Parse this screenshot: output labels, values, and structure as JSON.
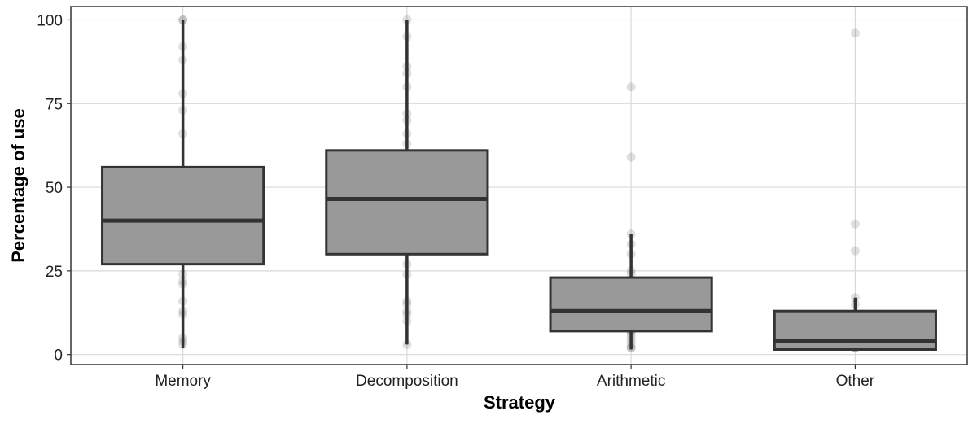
{
  "chart_data": {
    "type": "box",
    "title": "",
    "xlabel": "Strategy",
    "ylabel": "Percentage of use",
    "ylim": [
      -3,
      104
    ],
    "yticks": [
      0,
      25,
      50,
      75,
      100
    ],
    "ytick_labels": [
      "0",
      "25",
      "50",
      "75",
      "100"
    ],
    "grid": true,
    "legend": "none",
    "colors": {
      "box_fill": "#999999",
      "box_stroke": "#333333",
      "points": "#555555",
      "grid": "#d9d9d9",
      "panel_border": "#333333"
    },
    "categories": [
      "Memory",
      "Decomposition",
      "Arithmetic",
      "Other"
    ],
    "boxes": [
      {
        "category": "Memory",
        "whisker_low": 2,
        "q1": 27,
        "median": 40,
        "q3": 56,
        "whisker_high": 100
      },
      {
        "category": "Decomposition",
        "whisker_low": 3,
        "q1": 30,
        "median": 46.5,
        "q3": 61,
        "whisker_high": 100
      },
      {
        "category": "Arithmetic",
        "whisker_low": 1.5,
        "q1": 7,
        "median": 13,
        "q3": 23,
        "whisker_high": 36
      },
      {
        "category": "Other",
        "whisker_low": 1.5,
        "q1": 1.5,
        "median": 4,
        "q3": 13,
        "whisker_high": 17
      }
    ],
    "points": [
      {
        "category": "Memory",
        "values": [
          100,
          100,
          92,
          88,
          78,
          73,
          66,
          54,
          53,
          51,
          50,
          49,
          48,
          46,
          44,
          43,
          42,
          40,
          39,
          38,
          36,
          35,
          34,
          32,
          30,
          29,
          28,
          24,
          22,
          21,
          16,
          13,
          12,
          5,
          4,
          3
        ]
      },
      {
        "category": "Decomposition",
        "values": [
          100,
          95,
          86,
          84,
          80,
          72,
          70,
          66,
          63,
          60,
          57,
          56,
          53,
          53,
          52,
          50,
          48,
          47,
          46,
          45,
          44,
          43,
          42,
          41,
          40,
          39,
          38,
          37,
          36,
          34,
          32,
          31,
          27,
          24,
          16,
          15,
          13,
          12,
          10,
          3
        ]
      },
      {
        "category": "Arithmetic",
        "values": [
          80,
          59,
          36,
          33,
          30,
          25,
          24,
          22,
          21,
          20,
          18,
          16,
          15,
          14,
          13,
          12,
          11,
          10,
          9,
          8,
          7,
          7,
          6,
          5,
          4,
          3,
          2,
          2
        ]
      },
      {
        "category": "Other",
        "values": [
          96,
          39,
          31,
          17,
          15,
          12,
          11,
          8,
          7,
          6,
          5,
          4,
          3,
          3,
          2,
          2,
          2
        ]
      }
    ]
  }
}
